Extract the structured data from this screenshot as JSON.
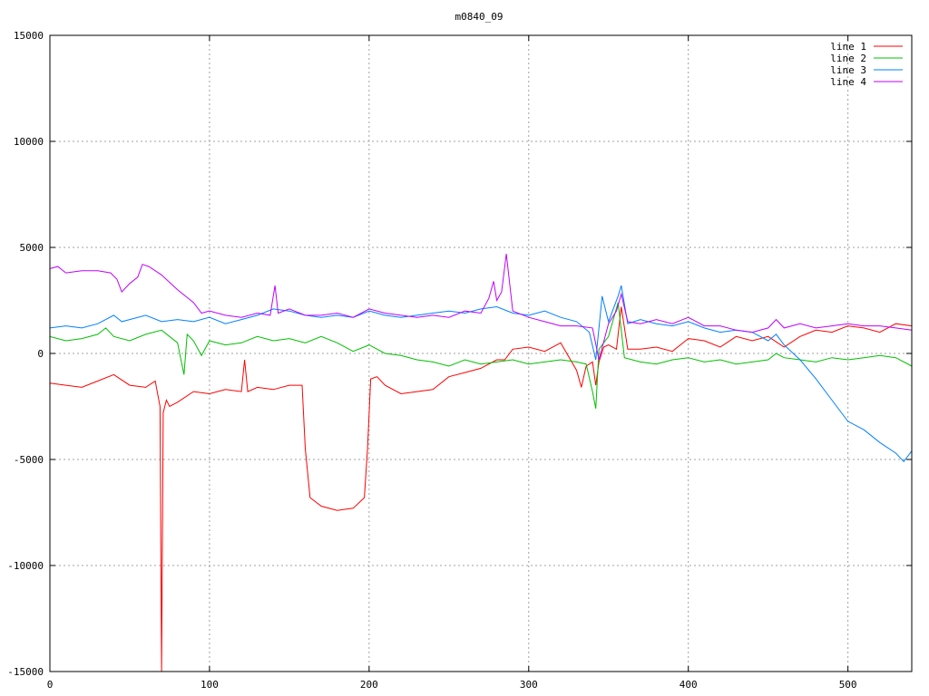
{
  "chart_data": {
    "type": "line",
    "title": "m0840_09",
    "xlabel": "",
    "ylabel": "",
    "xlim": [
      0,
      540
    ],
    "ylim": [
      -15000,
      15000
    ],
    "xticks": [
      0,
      100,
      200,
      300,
      400,
      500
    ],
    "yticks": [
      -15000,
      -10000,
      -5000,
      0,
      5000,
      10000,
      15000
    ],
    "grid": true,
    "legend_position": "top-right",
    "series": [
      {
        "name": "line 1",
        "color": "#ff0000",
        "x": [
          0,
          10,
          20,
          30,
          40,
          50,
          60,
          66,
          69,
          70,
          71,
          73,
          75,
          80,
          90,
          100,
          110,
          120,
          122,
          124,
          130,
          140,
          150,
          158,
          160,
          163,
          170,
          180,
          190,
          197,
          199,
          201,
          205,
          210,
          220,
          230,
          240,
          250,
          260,
          270,
          280,
          285,
          290,
          300,
          310,
          320,
          330,
          333,
          336,
          340,
          342,
          344,
          347,
          350,
          355,
          358,
          362,
          370,
          380,
          390,
          400,
          410,
          420,
          430,
          440,
          450,
          460,
          470,
          480,
          490,
          500,
          510,
          520,
          530,
          540
        ],
        "y": [
          -1400,
          -1500,
          -1600,
          -1300,
          -1000,
          -1500,
          -1600,
          -1300,
          -2500,
          -15000,
          -2800,
          -2200,
          -2500,
          -2300,
          -1800,
          -1900,
          -1700,
          -1800,
          -300,
          -1800,
          -1600,
          -1700,
          -1500,
          -1500,
          -4500,
          -6800,
          -7200,
          -7400,
          -7300,
          -6800,
          -4500,
          -1200,
          -1100,
          -1500,
          -1900,
          -1800,
          -1700,
          -1100,
          -900,
          -700,
          -300,
          -300,
          200,
          300,
          100,
          500,
          -800,
          -1600,
          -600,
          -400,
          -1500,
          -400,
          300,
          400,
          200,
          2200,
          200,
          200,
          300,
          100,
          700,
          600,
          300,
          800,
          600,
          800,
          300,
          800,
          1100,
          1000,
          1300,
          1200,
          1000,
          1400,
          1300
        ]
      },
      {
        "name": "line 2",
        "color": "#00c000",
        "x": [
          0,
          10,
          20,
          30,
          35,
          40,
          50,
          60,
          70,
          80,
          84,
          86,
          90,
          95,
          100,
          110,
          120,
          130,
          140,
          150,
          160,
          170,
          180,
          190,
          200,
          210,
          220,
          230,
          240,
          250,
          260,
          270,
          280,
          290,
          300,
          310,
          320,
          330,
          336,
          340,
          342,
          344,
          350,
          356,
          360,
          370,
          380,
          390,
          400,
          410,
          420,
          430,
          440,
          450,
          455,
          460,
          470,
          480,
          490,
          500,
          510,
          520,
          530,
          540
        ],
        "y": [
          800,
          600,
          700,
          900,
          1200,
          800,
          600,
          900,
          1100,
          500,
          -1000,
          900,
          600,
          -100,
          600,
          400,
          500,
          800,
          600,
          700,
          500,
          800,
          500,
          100,
          400,
          0,
          -100,
          -300,
          -400,
          -600,
          -300,
          -500,
          -400,
          -300,
          -500,
          -400,
          -300,
          -400,
          -500,
          -1800,
          -2600,
          200,
          800,
          2400,
          -200,
          -400,
          -500,
          -300,
          -200,
          -400,
          -300,
          -500,
          -400,
          -300,
          0,
          -200,
          -300,
          -400,
          -200,
          -300,
          -200,
          -100,
          -200,
          -600
        ]
      },
      {
        "name": "line 3",
        "color": "#0080ff",
        "x": [
          0,
          10,
          20,
          30,
          40,
          45,
          50,
          60,
          70,
          80,
          90,
          100,
          110,
          120,
          130,
          140,
          150,
          160,
          170,
          180,
          190,
          200,
          210,
          220,
          230,
          240,
          250,
          260,
          270,
          280,
          290,
          300,
          310,
          320,
          330,
          338,
          342,
          346,
          350,
          356,
          358,
          362,
          370,
          380,
          390,
          400,
          410,
          420,
          430,
          440,
          450,
          455,
          460,
          470,
          480,
          490,
          500,
          510,
          520,
          530,
          535,
          540
        ],
        "y": [
          1200,
          1300,
          1200,
          1400,
          1800,
          1500,
          1600,
          1800,
          1500,
          1600,
          1500,
          1700,
          1400,
          1600,
          1800,
          2100,
          2000,
          1800,
          1700,
          1800,
          1700,
          2000,
          1800,
          1700,
          1800,
          1900,
          2000,
          1900,
          2100,
          2200,
          1900,
          1800,
          2000,
          1700,
          1500,
          1000,
          -300,
          2700,
          1500,
          2700,
          3200,
          1400,
          1600,
          1400,
          1300,
          1500,
          1200,
          1000,
          1100,
          1000,
          600,
          900,
          400,
          -300,
          -1200,
          -2200,
          -3200,
          -3600,
          -4200,
          -4700,
          -5100,
          -4600
        ]
      },
      {
        "name": "line 4",
        "color": "#c000ff",
        "x": [
          0,
          5,
          10,
          20,
          30,
          38,
          42,
          45,
          50,
          55,
          58,
          62,
          70,
          80,
          90,
          95,
          100,
          110,
          120,
          130,
          138,
          141,
          143,
          150,
          160,
          170,
          180,
          190,
          200,
          210,
          220,
          230,
          240,
          250,
          260,
          270,
          275,
          278,
          280,
          283,
          286,
          290,
          300,
          310,
          320,
          330,
          340,
          344,
          350,
          355,
          358,
          362,
          370,
          380,
          390,
          400,
          410,
          420,
          430,
          440,
          450,
          455,
          460,
          470,
          480,
          490,
          500,
          510,
          520,
          530,
          540
        ],
        "y": [
          4000,
          4100,
          3800,
          3900,
          3900,
          3800,
          3500,
          2900,
          3300,
          3600,
          4200,
          4100,
          3700,
          3000,
          2400,
          1900,
          2000,
          1800,
          1700,
          1900,
          1800,
          3200,
          1900,
          2100,
          1800,
          1800,
          1900,
          1700,
          2100,
          1900,
          1800,
          1700,
          1800,
          1700,
          2000,
          1900,
          2600,
          3400,
          2500,
          2900,
          4700,
          2000,
          1700,
          1500,
          1300,
          1300,
          1200,
          -300,
          1400,
          2000,
          2800,
          1500,
          1400,
          1600,
          1400,
          1700,
          1300,
          1300,
          1100,
          1000,
          1200,
          1600,
          1200,
          1400,
          1200,
          1300,
          1400,
          1300,
          1300,
          1200,
          1100
        ]
      }
    ]
  }
}
